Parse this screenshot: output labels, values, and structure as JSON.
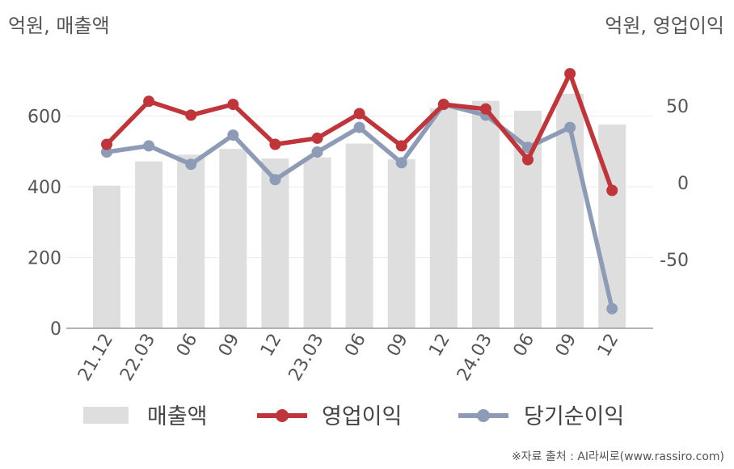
{
  "units": {
    "left": "억원, 매출액",
    "right": "억원, 영업이익"
  },
  "source": "※자료 출처 : AI라씨로(www.rassiro.com)",
  "chart_data": {
    "type": "bar",
    "categories": [
      "21.12",
      "22.03",
      "06",
      "09",
      "12",
      "23.03",
      "06",
      "09",
      "12",
      "24.03",
      "06",
      "09",
      "12"
    ],
    "ylim_left": [
      0,
      700
    ],
    "yticks_left": [
      0,
      200,
      400,
      600
    ],
    "ylim_right": [
      -95,
      75
    ],
    "yticks_right": [
      -50,
      0,
      50
    ],
    "grid": true,
    "legend_position": "bottom",
    "series": [
      {
        "name": "매출액",
        "type": "bar",
        "axis": "left",
        "color": "#dedede",
        "values": [
          403,
          472,
          491,
          507,
          480,
          483,
          522,
          478,
          622,
          643,
          615,
          663,
          576
        ]
      },
      {
        "name": "영업이익",
        "type": "line",
        "axis": "right",
        "color": "#c0353a",
        "values": [
          25,
          53,
          44,
          51,
          25,
          29,
          45,
          24,
          51,
          48,
          15,
          71,
          -5
        ]
      },
      {
        "name": "당기순이익",
        "type": "line",
        "axis": "right",
        "color": "#8e9bb7",
        "values": [
          20,
          24,
          12,
          31,
          2,
          20,
          36,
          13,
          51,
          44,
          23,
          36,
          -82
        ]
      }
    ]
  }
}
